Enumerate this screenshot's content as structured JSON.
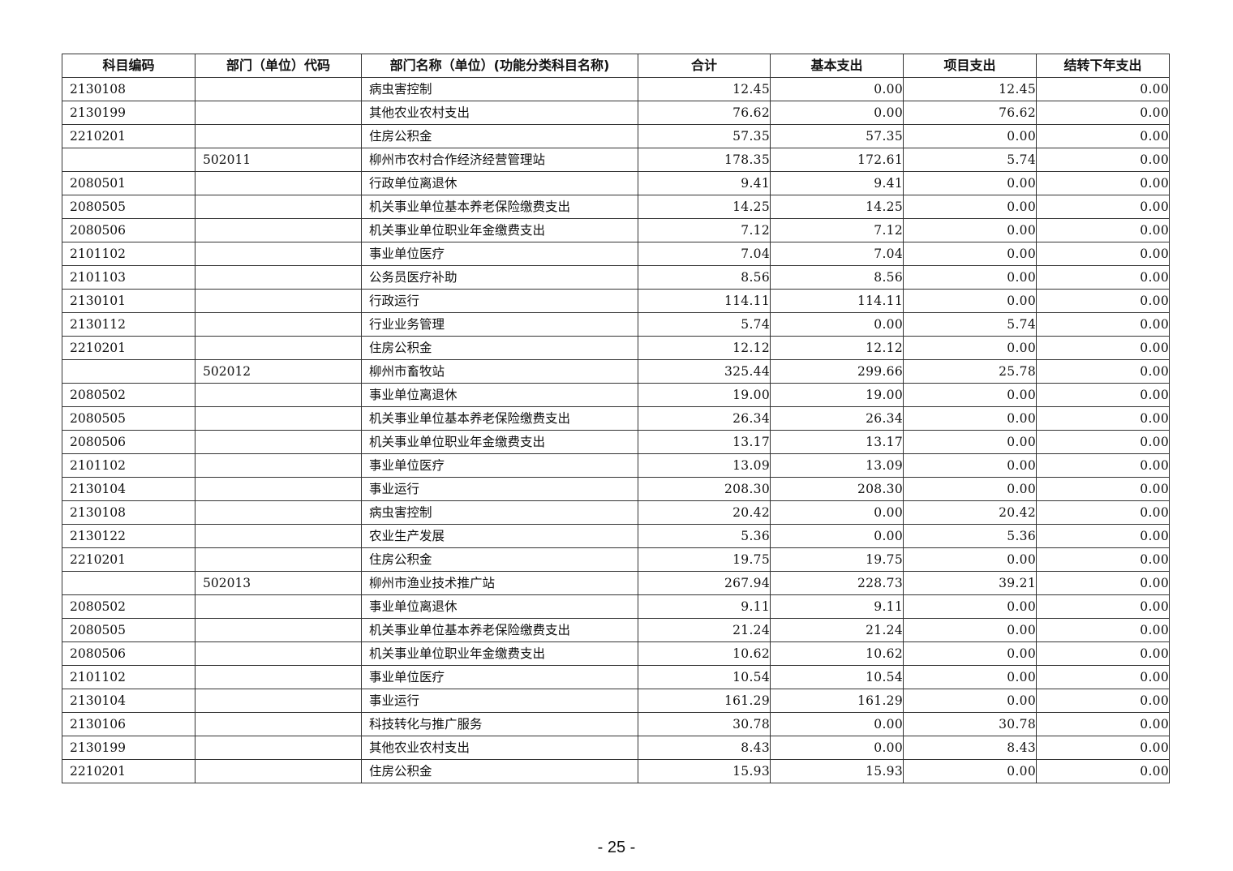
{
  "table": {
    "headers": [
      "科目编码",
      "部门（单位）代码",
      "部门名称（单位）(功能分类科目名称)",
      "合计",
      "基本支出",
      "项目支出",
      "结转下年支出"
    ],
    "rows": [
      [
        "2130108",
        "",
        "病虫害控制",
        "12.45",
        "0.00",
        "12.45",
        "0.00"
      ],
      [
        "2130199",
        "",
        "其他农业农村支出",
        "76.62",
        "0.00",
        "76.62",
        "0.00"
      ],
      [
        "2210201",
        "",
        "住房公积金",
        "57.35",
        "57.35",
        "0.00",
        "0.00"
      ],
      [
        "",
        "502011",
        "柳州市农村合作经济经营管理站",
        "178.35",
        "172.61",
        "5.74",
        "0.00"
      ],
      [
        "2080501",
        "",
        "行政单位离退休",
        "9.41",
        "9.41",
        "0.00",
        "0.00"
      ],
      [
        "2080505",
        "",
        "机关事业单位基本养老保险缴费支出",
        "14.25",
        "14.25",
        "0.00",
        "0.00"
      ],
      [
        "2080506",
        "",
        "机关事业单位职业年金缴费支出",
        "7.12",
        "7.12",
        "0.00",
        "0.00"
      ],
      [
        "2101102",
        "",
        "事业单位医疗",
        "7.04",
        "7.04",
        "0.00",
        "0.00"
      ],
      [
        "2101103",
        "",
        "公务员医疗补助",
        "8.56",
        "8.56",
        "0.00",
        "0.00"
      ],
      [
        "2130101",
        "",
        "行政运行",
        "114.11",
        "114.11",
        "0.00",
        "0.00"
      ],
      [
        "2130112",
        "",
        "行业业务管理",
        "5.74",
        "0.00",
        "5.74",
        "0.00"
      ],
      [
        "2210201",
        "",
        "住房公积金",
        "12.12",
        "12.12",
        "0.00",
        "0.00"
      ],
      [
        "",
        "502012",
        "柳州市畜牧站",
        "325.44",
        "299.66",
        "25.78",
        "0.00"
      ],
      [
        "2080502",
        "",
        "事业单位离退休",
        "19.00",
        "19.00",
        "0.00",
        "0.00"
      ],
      [
        "2080505",
        "",
        "机关事业单位基本养老保险缴费支出",
        "26.34",
        "26.34",
        "0.00",
        "0.00"
      ],
      [
        "2080506",
        "",
        "机关事业单位职业年金缴费支出",
        "13.17",
        "13.17",
        "0.00",
        "0.00"
      ],
      [
        "2101102",
        "",
        "事业单位医疗",
        "13.09",
        "13.09",
        "0.00",
        "0.00"
      ],
      [
        "2130104",
        "",
        "事业运行",
        "208.30",
        "208.30",
        "0.00",
        "0.00"
      ],
      [
        "2130108",
        "",
        "病虫害控制",
        "20.42",
        "0.00",
        "20.42",
        "0.00"
      ],
      [
        "2130122",
        "",
        "农业生产发展",
        "5.36",
        "0.00",
        "5.36",
        "0.00"
      ],
      [
        "2210201",
        "",
        "住房公积金",
        "19.75",
        "19.75",
        "0.00",
        "0.00"
      ],
      [
        "",
        "502013",
        "柳州市渔业技术推广站",
        "267.94",
        "228.73",
        "39.21",
        "0.00"
      ],
      [
        "2080502",
        "",
        "事业单位离退休",
        "9.11",
        "9.11",
        "0.00",
        "0.00"
      ],
      [
        "2080505",
        "",
        "机关事业单位基本养老保险缴费支出",
        "21.24",
        "21.24",
        "0.00",
        "0.00"
      ],
      [
        "2080506",
        "",
        "机关事业单位职业年金缴费支出",
        "10.62",
        "10.62",
        "0.00",
        "0.00"
      ],
      [
        "2101102",
        "",
        "事业单位医疗",
        "10.54",
        "10.54",
        "0.00",
        "0.00"
      ],
      [
        "2130104",
        "",
        "事业运行",
        "161.29",
        "161.29",
        "0.00",
        "0.00"
      ],
      [
        "2130106",
        "",
        "科技转化与推广服务",
        "30.78",
        "0.00",
        "30.78",
        "0.00"
      ],
      [
        "2130199",
        "",
        "其他农业农村支出",
        "8.43",
        "0.00",
        "8.43",
        "0.00"
      ],
      [
        "2210201",
        "",
        "住房公积金",
        "15.93",
        "15.93",
        "0.00",
        "0.00"
      ]
    ]
  },
  "footer": {
    "page_number": "- 25 -"
  }
}
